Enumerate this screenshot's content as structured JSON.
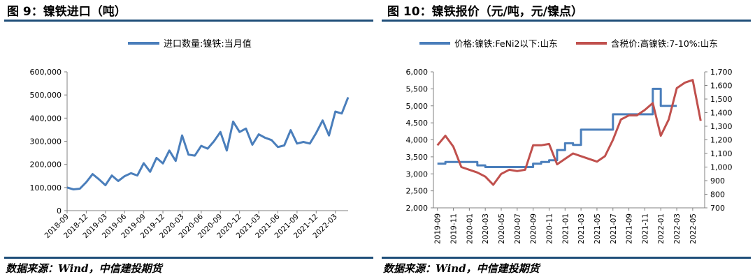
{
  "left": {
    "title": "图 9：镍铁进口（吨）",
    "source": "数据来源：Wind，中信建投期货",
    "chart_data": {
      "type": "line",
      "legend_position": "top",
      "grid": false,
      "x": [
        "2018-09",
        "2018-10",
        "2018-11",
        "2018-12",
        "2019-01",
        "2019-02",
        "2019-03",
        "2019-04",
        "2019-05",
        "2019-06",
        "2019-07",
        "2019-08",
        "2019-09",
        "2019-10",
        "2019-11",
        "2019-12",
        "2020-01",
        "2020-02",
        "2020-03",
        "2020-04",
        "2020-05",
        "2020-06",
        "2020-07",
        "2020-08",
        "2020-09",
        "2020-10",
        "2020-11",
        "2020-12",
        "2021-01",
        "2021-02",
        "2021-03",
        "2021-04",
        "2021-05",
        "2021-06",
        "2021-07",
        "2021-08",
        "2021-09",
        "2021-10",
        "2021-11",
        "2021-12",
        "2022-01",
        "2022-02",
        "2022-03",
        "2022-04",
        "2022-05"
      ],
      "x_tick_labels": [
        "2018-09",
        "2018-12",
        "2019-03",
        "2019-06",
        "2019-09",
        "2019-12",
        "2020-03",
        "2020-06",
        "2020-09",
        "2020-12",
        "2021-03",
        "2021-06",
        "2021-09",
        "2021-12",
        "2022-03"
      ],
      "ylim": [
        0,
        600000
      ],
      "y_ticks": [
        "0",
        "100,000",
        "200,000",
        "300,000",
        "400,000",
        "500,000",
        "600,000"
      ],
      "series": [
        {
          "name": "进口数量:镍铁:当月值",
          "color": "#4a7ebb",
          "values": [
            100000,
            92000,
            95000,
            123000,
            158000,
            135000,
            110000,
            152000,
            128000,
            149000,
            162000,
            152000,
            205000,
            168000,
            228000,
            204000,
            260000,
            215000,
            325000,
            242000,
            238000,
            280000,
            268000,
            300000,
            340000,
            260000,
            385000,
            340000,
            355000,
            285000,
            330000,
            315000,
            305000,
            275000,
            282000,
            348000,
            290000,
            297000,
            290000,
            336000,
            390000,
            325000,
            428000,
            420000,
            490000
          ]
        }
      ]
    }
  },
  "right": {
    "title": "图 10：镍铁报价（元/吨，元/镍点）",
    "source": "数据来源：Wind，中信建投期货",
    "chart_data": {
      "type": "line",
      "legend_position": "top",
      "grid": false,
      "x": [
        "2019-09",
        "2019-10",
        "2019-11",
        "2019-12",
        "2020-01",
        "2020-02",
        "2020-03",
        "2020-04",
        "2020-05",
        "2020-06",
        "2020-07",
        "2020-08",
        "2020-09",
        "2020-10",
        "2020-11",
        "2020-12",
        "2021-01",
        "2021-02",
        "2021-03",
        "2021-04",
        "2021-05",
        "2021-06",
        "2021-07",
        "2021-08",
        "2021-09",
        "2021-10",
        "2021-11",
        "2021-12",
        "2022-01",
        "2022-02",
        "2022-03",
        "2022-04",
        "2022-05",
        "2022-06"
      ],
      "x_tick_labels": [
        "2019-09",
        "2019-11",
        "2020-01",
        "2020-03",
        "2020-05",
        "2020-07",
        "2020-09",
        "2020-11",
        "2021-01",
        "2021-03",
        "2021-05",
        "2021-07",
        "2021-09",
        "2021-11",
        "2022-01",
        "2022-03",
        "2022-05"
      ],
      "ylim_left": [
        2000,
        6000
      ],
      "ylim_right": [
        700,
        1700
      ],
      "y_ticks_left": [
        "2,000",
        "2,500",
        "3,000",
        "3,500",
        "4,000",
        "4,500",
        "5,000",
        "5,500",
        "6,000"
      ],
      "y_ticks_right": [
        "700",
        "800",
        "900",
        "1,000",
        "1,100",
        "1,200",
        "1,300",
        "1,400",
        "1,500",
        "1,600",
        "1,700"
      ],
      "series": [
        {
          "name": "价格:镍铁:FeNi2以下:山东",
          "axis": "left",
          "color": "#4a7ebb",
          "values": [
            3300,
            3350,
            3350,
            3350,
            3350,
            3250,
            3200,
            3200,
            3200,
            3200,
            3200,
            3200,
            3300,
            3350,
            3400,
            3700,
            3900,
            3850,
            4300,
            4300,
            4300,
            4300,
            4750,
            4750,
            4750,
            4750,
            4750,
            5500,
            5000,
            5000,
            5000,
            null,
            null,
            null
          ]
        },
        {
          "name": "含税价:高镍铁:7-10%:山东",
          "axis": "right",
          "color": "#c0504d",
          "values": [
            1160,
            1230,
            1150,
            1000,
            980,
            960,
            930,
            870,
            950,
            980,
            970,
            980,
            1160,
            1160,
            1170,
            1020,
            1060,
            1100,
            1080,
            1060,
            1040,
            1080,
            1200,
            1350,
            1380,
            1380,
            1420,
            1470,
            1230,
            1350,
            1580,
            1620,
            1640,
            1340
          ]
        }
      ]
    }
  }
}
